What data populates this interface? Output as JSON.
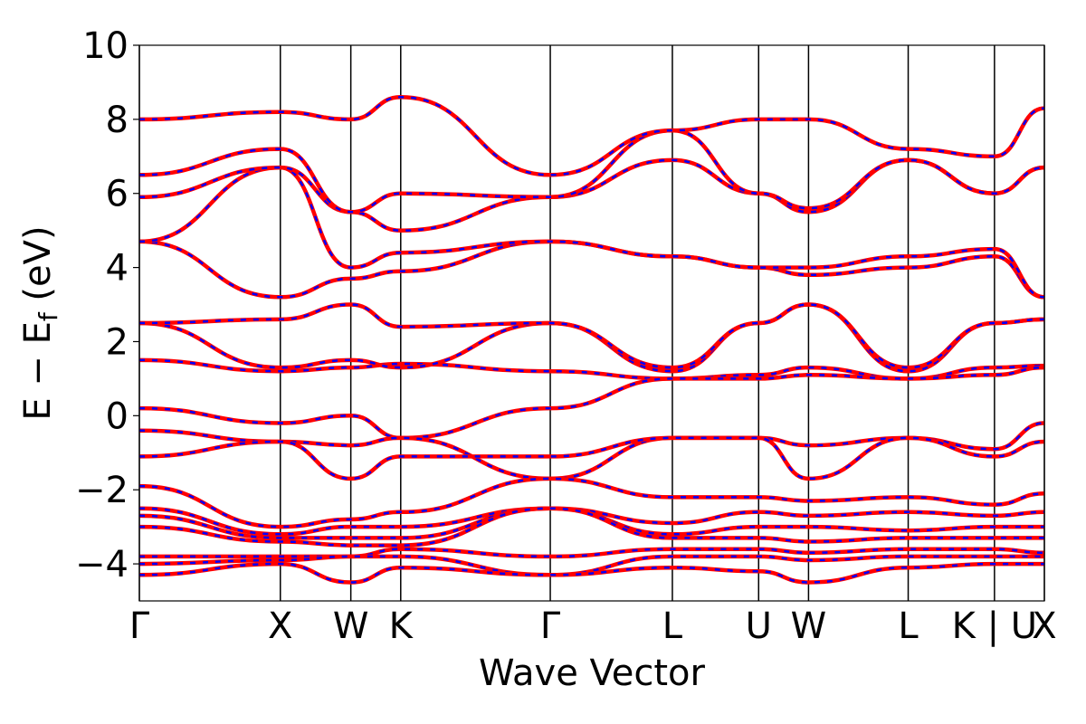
{
  "chart_data": {
    "type": "line",
    "title": "",
    "xlabel": "Wave Vector",
    "ylabel": "E − E_f (eV)",
    "ylabel_parts": {
      "main": "E  −  E",
      "sub": "f",
      "unit": " (eV)"
    },
    "ylim": [
      -5,
      10
    ],
    "y_ticks": [
      -4,
      -2,
      0,
      2,
      4,
      6,
      8,
      10
    ],
    "y_tick_labels": [
      "−4",
      "−2",
      "0",
      "2",
      "4",
      "6",
      "8",
      "10"
    ],
    "k_path": [
      {
        "label": "Γ",
        "x": 0.0
      },
      {
        "label": "X",
        "x": 1.0
      },
      {
        "label": "W",
        "x": 1.5
      },
      {
        "label": "K",
        "x": 1.854
      },
      {
        "label": "Γ",
        "x": 2.915
      },
      {
        "label": "L",
        "x": 3.781
      },
      {
        "label": "U",
        "x": 4.393
      },
      {
        "label": "W",
        "x": 4.747
      },
      {
        "label": "L",
        "x": 5.454
      },
      {
        "label": "K | U",
        "x": 6.066
      },
      {
        "label": "X",
        "x": 6.42
      }
    ],
    "xlim": [
      0,
      6.42
    ],
    "grid": false,
    "legend": "none",
    "series": [
      {
        "style": "solid",
        "color": "#ff0000"
      },
      {
        "style": "dashed",
        "color": "#0000ff"
      }
    ],
    "bands": [
      [
        1.5,
        1.2,
        1.3,
        1.4,
        1.2,
        1.0,
        1.1,
        1.3,
        1.0,
        1.3,
        1.35
      ],
      [
        0.2,
        -0.2,
        0.0,
        -0.6,
        0.2,
        1.0,
        1.0,
        1.1,
        1.0,
        1.1,
        1.3
      ],
      [
        -0.4,
        -0.7,
        -0.8,
        -0.6,
        -1.7,
        -0.6,
        -0.6,
        -0.8,
        -0.6,
        -0.9,
        -0.2
      ],
      [
        -1.1,
        -0.7,
        -1.7,
        -1.1,
        -1.1,
        -0.6,
        -0.6,
        -1.7,
        -0.6,
        -1.1,
        -0.7
      ],
      [
        2.5,
        1.3,
        1.5,
        1.3,
        2.5,
        1.2,
        2.5,
        3.0,
        1.2,
        2.5,
        2.6
      ],
      [
        2.5,
        2.6,
        3.0,
        2.4,
        2.5,
        1.3,
        2.5,
        3.0,
        1.3,
        2.5,
        2.6
      ],
      [
        4.7,
        3.2,
        3.7,
        3.9,
        4.7,
        4.3,
        4.0,
        3.8,
        4.0,
        4.3,
        3.2
      ],
      [
        4.7,
        6.7,
        4.0,
        4.4,
        4.7,
        4.3,
        4.0,
        4.0,
        4.3,
        4.5,
        3.2
      ],
      [
        5.9,
        6.7,
        5.5,
        5.0,
        5.9,
        6.9,
        6.0,
        5.5,
        6.9,
        6.0,
        6.7
      ],
      [
        6.5,
        7.2,
        5.5,
        6.0,
        5.9,
        7.7,
        6.0,
        5.6,
        6.9,
        6.0,
        6.7
      ],
      [
        8.0,
        8.2,
        8.0,
        8.6,
        6.5,
        7.7,
        8.0,
        8.0,
        7.2,
        7.0,
        8.3
      ],
      [
        -1.9,
        -3.0,
        -2.8,
        -2.6,
        -1.7,
        -2.2,
        -2.2,
        -2.3,
        -2.2,
        -2.4,
        -2.1
      ],
      [
        -2.5,
        -3.2,
        -3.0,
        -3.0,
        -2.5,
        -2.9,
        -2.6,
        -2.7,
        -2.6,
        -2.7,
        -2.6
      ],
      [
        -2.7,
        -3.3,
        -3.3,
        -3.3,
        -2.5,
        -3.2,
        -3.0,
        -3.0,
        -3.1,
        -3.0,
        -3.0
      ],
      [
        -3.0,
        -3.4,
        -3.5,
        -3.5,
        -2.5,
        -3.3,
        -3.3,
        -3.4,
        -3.3,
        -3.3,
        -3.3
      ],
      [
        -3.8,
        -3.8,
        -3.8,
        -3.6,
        -3.8,
        -3.6,
        -3.6,
        -3.7,
        -3.6,
        -3.6,
        -3.7
      ],
      [
        -4.0,
        -3.9,
        -3.8,
        -3.8,
        -4.3,
        -3.8,
        -3.8,
        -3.9,
        -3.8,
        -3.8,
        -3.8
      ],
      [
        -4.3,
        -4.0,
        -4.5,
        -4.1,
        -4.3,
        -4.1,
        -4.2,
        -4.5,
        -4.1,
        -4.0,
        -4.0
      ]
    ]
  }
}
